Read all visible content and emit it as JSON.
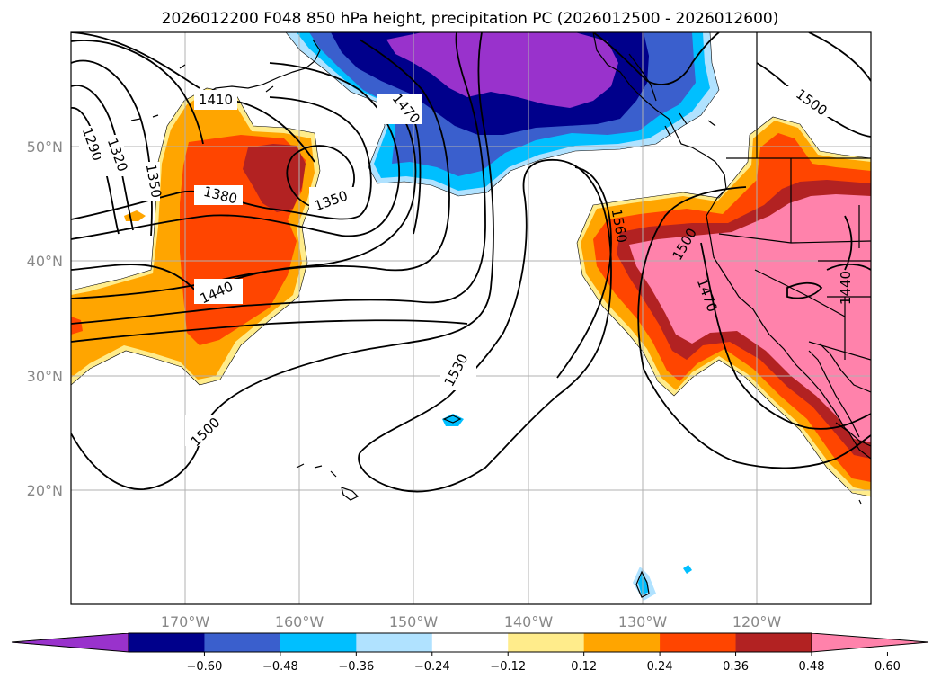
{
  "title": "2026012200 F048 850 hPa height, precipitation PC (2026012500 - 2026012600)",
  "map": {
    "lon_range": [
      -180,
      -110
    ],
    "lat_range": [
      10,
      60
    ],
    "grid": true,
    "lon_ticks": [
      {
        "value": -170,
        "label": "170°W"
      },
      {
        "value": -160,
        "label": "160°W"
      },
      {
        "value": -150,
        "label": "150°W"
      },
      {
        "value": -140,
        "label": "140°W"
      },
      {
        "value": -130,
        "label": "130°W"
      },
      {
        "value": -120,
        "label": "120°W"
      }
    ],
    "lat_ticks": [
      {
        "value": 20,
        "label": "20°N"
      },
      {
        "value": 30,
        "label": "30°N"
      },
      {
        "value": 40,
        "label": "40°N"
      },
      {
        "value": 50,
        "label": "50°N"
      }
    ],
    "contour_labels": [
      "1290",
      "1320",
      "1350",
      "1410",
      "1470",
      "1380",
      "1350",
      "1440",
      "1530",
      "1500",
      "1560",
      "1500",
      "1470",
      "1440",
      "1500"
    ]
  },
  "colorbar": {
    "colors": [
      "#9932cc",
      "#00008b",
      "#3a5fcd",
      "#00bfff",
      "#b0e2ff",
      "#ffffff",
      "#ffec8b",
      "#ffa500",
      "#ff4500",
      "#b22222",
      "#ff82ab"
    ],
    "tick_labels": [
      "−0.60",
      "−0.48",
      "−0.36",
      "−0.24",
      "−0.12",
      "0.12",
      "0.24",
      "0.36",
      "0.48",
      "0.60"
    ]
  }
}
